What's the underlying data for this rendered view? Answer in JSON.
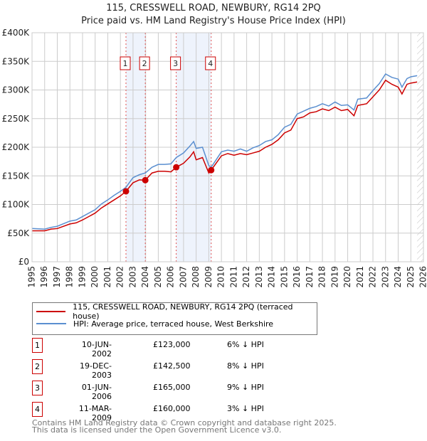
{
  "chart_data": {
    "type": "line",
    "title": "115, CRESSWELL ROAD, NEWBURY, RG14 2PQ",
    "subtitle": "Price paid vs. HM Land Registry's House Price Index (HPI)",
    "xlim": [
      1995,
      2026
    ],
    "ylim": [
      0,
      400000
    ],
    "x_ticks": [
      "1995",
      "1996",
      "1997",
      "1998",
      "1999",
      "2000",
      "2001",
      "2002",
      "2003",
      "2004",
      "2005",
      "2006",
      "2007",
      "2008",
      "2009",
      "2010",
      "2011",
      "2012",
      "2013",
      "2014",
      "2015",
      "2016",
      "2017",
      "2018",
      "2019",
      "2020",
      "2021",
      "2022",
      "2023",
      "2024",
      "2025",
      "2026"
    ],
    "y_ticks": [
      {
        "v": 0,
        "label": "£0"
      },
      {
        "v": 50000,
        "label": "£50K"
      },
      {
        "v": 100000,
        "label": "£100K"
      },
      {
        "v": 150000,
        "label": "£150K"
      },
      {
        "v": 200000,
        "label": "£200K"
      },
      {
        "v": 250000,
        "label": "£250K"
      },
      {
        "v": 300000,
        "label": "£300K"
      },
      {
        "v": 350000,
        "label": "£350K"
      },
      {
        "v": 400000,
        "label": "£400K"
      }
    ],
    "grid": true,
    "series": [
      {
        "name": "115, CRESSWELL ROAD, NEWBURY, RG14 2PQ (terraced house)",
        "color": "#cc0000",
        "points": [
          [
            1995,
            54000
          ],
          [
            1996,
            54000
          ],
          [
            1996.5,
            57000
          ],
          [
            1997,
            58000
          ],
          [
            1998,
            66000
          ],
          [
            1998.5,
            68000
          ],
          [
            1999,
            73000
          ],
          [
            2000,
            85000
          ],
          [
            2000.5,
            94000
          ],
          [
            2001,
            101000
          ],
          [
            2001.5,
            108000
          ],
          [
            2002,
            115000
          ],
          [
            2002.44,
            123000
          ],
          [
            2003,
            138000
          ],
          [
            2003.5,
            143000
          ],
          [
            2003.97,
            142500
          ],
          [
            2004.5,
            155000
          ],
          [
            2005,
            158000
          ],
          [
            2005.5,
            158000
          ],
          [
            2006,
            157000
          ],
          [
            2006.42,
            165000
          ],
          [
            2007,
            172000
          ],
          [
            2007.5,
            183000
          ],
          [
            2007.8,
            192000
          ],
          [
            2008,
            178000
          ],
          [
            2008.5,
            182000
          ],
          [
            2009,
            155000
          ],
          [
            2009.19,
            160000
          ],
          [
            2010,
            185000
          ],
          [
            2010.5,
            189000
          ],
          [
            2011,
            186000
          ],
          [
            2011.5,
            189000
          ],
          [
            2012,
            187000
          ],
          [
            2012.5,
            190000
          ],
          [
            2013,
            193000
          ],
          [
            2013.5,
            200000
          ],
          [
            2014,
            205000
          ],
          [
            2014.5,
            213000
          ],
          [
            2015,
            225000
          ],
          [
            2015.5,
            230000
          ],
          [
            2016,
            250000
          ],
          [
            2016.5,
            253000
          ],
          [
            2017,
            260000
          ],
          [
            2017.5,
            262000
          ],
          [
            2018,
            267000
          ],
          [
            2018.5,
            264000
          ],
          [
            2019,
            270000
          ],
          [
            2019.5,
            264000
          ],
          [
            2020,
            266000
          ],
          [
            2020.5,
            255000
          ],
          [
            2020.8,
            273000
          ],
          [
            2021.5,
            276000
          ],
          [
            2022,
            288000
          ],
          [
            2022.5,
            300000
          ],
          [
            2023,
            317000
          ],
          [
            2023.5,
            310000
          ],
          [
            2024,
            305000
          ],
          [
            2024.3,
            293000
          ],
          [
            2024.7,
            310000
          ],
          [
            2025,
            312000
          ],
          [
            2025.5,
            314000
          ]
        ]
      },
      {
        "name": "HPI: Average price, terraced house, West Berkshire",
        "color": "#5b8fd0",
        "points": [
          [
            1995,
            58000
          ],
          [
            1996,
            57000
          ],
          [
            1996.5,
            60000
          ],
          [
            1997,
            62000
          ],
          [
            1998,
            71000
          ],
          [
            1998.5,
            73000
          ],
          [
            1999,
            79000
          ],
          [
            2000,
            91000
          ],
          [
            2000.5,
            101000
          ],
          [
            2001,
            108000
          ],
          [
            2001.5,
            116000
          ],
          [
            2002,
            123000
          ],
          [
            2002.44,
            130000
          ],
          [
            2003,
            147000
          ],
          [
            2003.5,
            152000
          ],
          [
            2003.97,
            155000
          ],
          [
            2004.5,
            165000
          ],
          [
            2005,
            170000
          ],
          [
            2005.5,
            170000
          ],
          [
            2006,
            171000
          ],
          [
            2006.42,
            182000
          ],
          [
            2007,
            190000
          ],
          [
            2007.5,
            202000
          ],
          [
            2007.8,
            210000
          ],
          [
            2008,
            198000
          ],
          [
            2008.5,
            200000
          ],
          [
            2009,
            168000
          ],
          [
            2009.19,
            165000
          ],
          [
            2010,
            192000
          ],
          [
            2010.5,
            195000
          ],
          [
            2011,
            193000
          ],
          [
            2011.5,
            197000
          ],
          [
            2012,
            193000
          ],
          [
            2012.5,
            199000
          ],
          [
            2013,
            203000
          ],
          [
            2013.5,
            210000
          ],
          [
            2014,
            213000
          ],
          [
            2014.5,
            222000
          ],
          [
            2015,
            235000
          ],
          [
            2015.5,
            240000
          ],
          [
            2016,
            258000
          ],
          [
            2016.5,
            263000
          ],
          [
            2017,
            268000
          ],
          [
            2017.5,
            271000
          ],
          [
            2018,
            276000
          ],
          [
            2018.5,
            272000
          ],
          [
            2019,
            279000
          ],
          [
            2019.5,
            273000
          ],
          [
            2020,
            274000
          ],
          [
            2020.5,
            265000
          ],
          [
            2020.8,
            284000
          ],
          [
            2021.5,
            286000
          ],
          [
            2022,
            299000
          ],
          [
            2022.5,
            311000
          ],
          [
            2023,
            328000
          ],
          [
            2023.5,
            322000
          ],
          [
            2024,
            319000
          ],
          [
            2024.3,
            305000
          ],
          [
            2024.7,
            320000
          ],
          [
            2025,
            323000
          ],
          [
            2025.5,
            325000
          ]
        ]
      }
    ],
    "sales": [
      {
        "n": "1",
        "date": "10-JUN-2002",
        "x": 2002.44,
        "price": 123000,
        "price_label": "£123,000",
        "hpi": "6% ↓ HPI"
      },
      {
        "n": "2",
        "date": "19-DEC-2003",
        "x": 2003.97,
        "price": 142500,
        "price_label": "£142,500",
        "hpi": "8% ↓ HPI"
      },
      {
        "n": "3",
        "date": "01-JUN-2006",
        "x": 2006.42,
        "price": 165000,
        "price_label": "£165,000",
        "hpi": "9% ↓ HPI"
      },
      {
        "n": "4",
        "date": "11-MAR-2009",
        "x": 2009.19,
        "price": 160000,
        "price_label": "£160,000",
        "hpi": "3% ↓ HPI"
      }
    ],
    "shaded_ranges": [
      [
        2002.44,
        2003.97
      ],
      [
        2006.42,
        2009.19
      ]
    ],
    "forecast_from": 2025.5
  },
  "footer": {
    "line1": "Contains HM Land Registry data © Crown copyright and database right 2025.",
    "line2": "This data is licensed under the Open Government Licence v3.0."
  }
}
